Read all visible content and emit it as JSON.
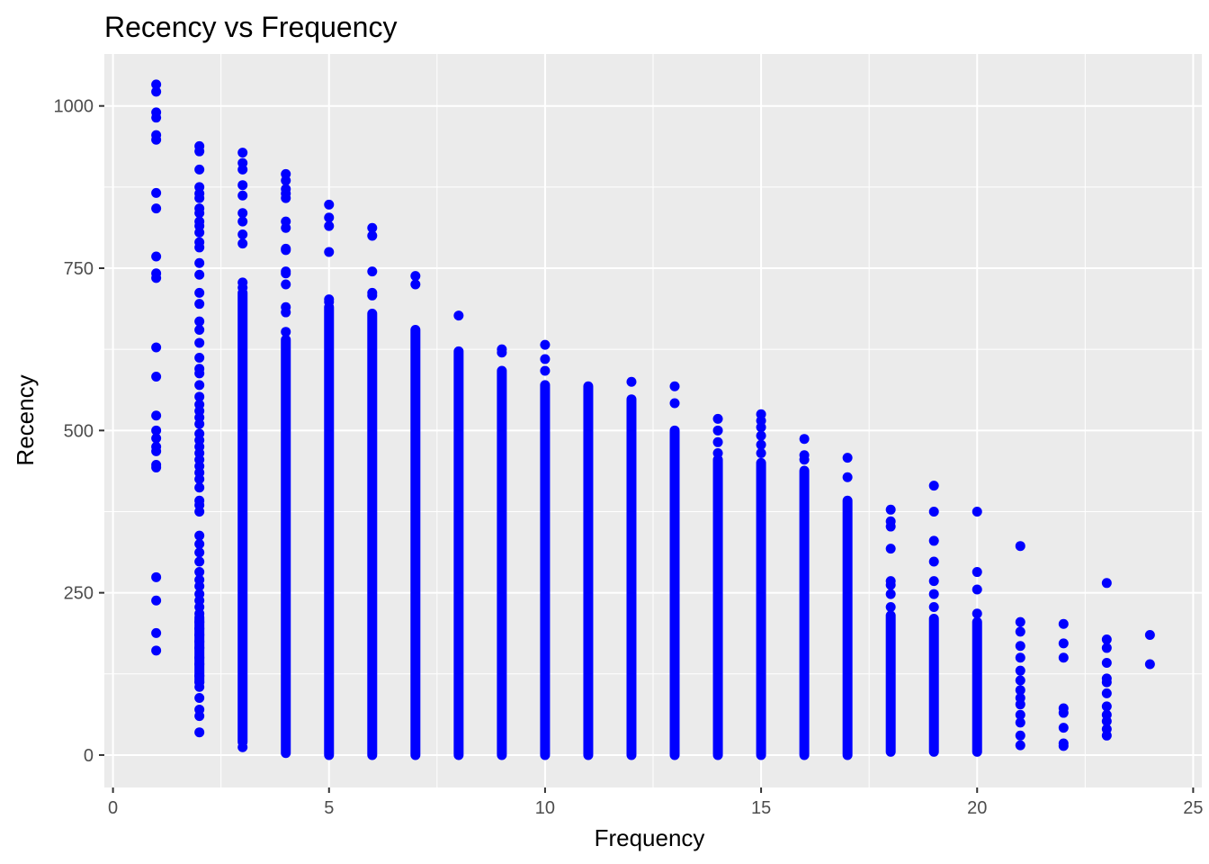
{
  "chart_data": {
    "type": "scatter",
    "title": "Recency vs Frequency",
    "xlabel": "Frequency",
    "ylabel": "Recency",
    "xlim": [
      -0.2,
      25.2
    ],
    "ylim": [
      -50,
      1080
    ],
    "x_ticks": [
      0,
      5,
      10,
      15,
      20,
      25
    ],
    "y_ticks": [
      0,
      250,
      500,
      750,
      1000
    ],
    "x_tick_labels": [
      "0",
      "5",
      "10",
      "15",
      "20",
      "25"
    ],
    "y_tick_labels": [
      "0",
      "250",
      "500",
      "750",
      "1000"
    ],
    "grid": true,
    "panel_background": "#ebebeb",
    "grid_color": "#ffffff",
    "point_color": "#0000ff",
    "series": [
      {
        "points": [
          {
            "x": 1,
            "y": [
              1033,
              1022,
              990,
              982,
              955,
              948,
              866,
              842,
              768,
              742,
              735,
              628,
              583,
              523,
              500,
              488,
              475,
              468,
              447,
              443,
              274,
              238,
              188,
              161
            ]
          },
          {
            "x": 2,
            "y": [
              938,
              930,
              902,
              875,
              865,
              858,
              842,
              835,
              822,
              815,
              805,
              790,
              782,
              758,
              740,
              712,
              695,
              668,
              655,
              635,
              612,
              595,
              588,
              570,
              552,
              540,
              530,
              520,
              510,
              495,
              485,
              475,
              465,
              455,
              445,
              435,
              425,
              412,
              392,
              385,
              375,
              338,
              325,
              312,
              298,
              282,
              270,
              260,
              248,
              238,
              228,
              218,
              205,
              195,
              185,
              175,
              165,
              150,
              140,
              122,
              112,
              105,
              88,
              70,
              60,
              35
            ],
            "range": [
              [
                112,
                212
              ]
            ]
          },
          {
            "x": 3,
            "y": [
              928,
              912,
              902,
              878,
              862,
              835,
              822,
              802,
              788,
              728,
              720,
              12
            ],
            "range": [
              [
                20,
                712
              ]
            ]
          },
          {
            "x": 4,
            "y": [
              895,
              885,
              872,
              865,
              858,
              822,
              812,
              780,
              778,
              745,
              742,
              725,
              690,
              682,
              652
            ],
            "range": [
              [
                3,
                640
              ]
            ]
          },
          {
            "x": 5,
            "y": [
              848,
              828,
              815,
              775,
              702,
              698
            ],
            "range": [
              [
                0,
                690
              ]
            ]
          },
          {
            "x": 6,
            "y": [
              812,
              800,
              745,
              712,
              708
            ],
            "range": [
              [
                0,
                680
              ]
            ]
          },
          {
            "x": 7,
            "y": [
              738,
              725
            ],
            "range": [
              [
                0,
                655
              ]
            ]
          },
          {
            "x": 8,
            "y": [
              677
            ],
            "range": [
              [
                0,
                622
              ]
            ]
          },
          {
            "x": 9,
            "y": [
              625,
              620
            ],
            "range": [
              [
                0,
                592
              ]
            ]
          },
          {
            "x": 10,
            "y": [
              632,
              610,
              592
            ],
            "range": [
              [
                0,
                570
              ]
            ]
          },
          {
            "x": 11,
            "y": [],
            "range": [
              [
                0,
                568
              ]
            ]
          },
          {
            "x": 12,
            "y": [
              575
            ],
            "range": [
              [
                0,
                548
              ]
            ]
          },
          {
            "x": 13,
            "y": [
              568,
              542
            ],
            "range": [
              [
                0,
                500
              ]
            ]
          },
          {
            "x": 14,
            "y": [
              518,
              500,
              482,
              465
            ],
            "range": [
              [
                0,
                455
              ]
            ]
          },
          {
            "x": 15,
            "y": [
              525,
              515,
              505,
              492,
              478,
              465
            ],
            "range": [
              [
                0,
                450
              ]
            ]
          },
          {
            "x": 16,
            "y": [
              487,
              462,
              455
            ],
            "range": [
              [
                0,
                438
              ]
            ]
          },
          {
            "x": 17,
            "y": [
              458,
              428
            ],
            "range": [
              [
                0,
                392
              ]
            ]
          },
          {
            "x": 18,
            "y": [
              378,
              360,
              352,
              318,
              268,
              262,
              248,
              228
            ],
            "range": [
              [
                5,
                215
              ]
            ]
          },
          {
            "x": 19,
            "y": [
              415,
              375,
              330,
              298,
              268,
              248,
              228
            ],
            "range": [
              [
                5,
                210
              ]
            ]
          },
          {
            "x": 20,
            "y": [
              375,
              282,
              255,
              218
            ],
            "range": [
              [
                5,
                205
              ]
            ]
          },
          {
            "x": 21,
            "y": [
              322,
              205,
              190,
              168,
              150,
              130,
              115,
              100,
              88,
              78,
              62,
              50,
              30,
              15
            ]
          },
          {
            "x": 22,
            "y": [
              202,
              172,
              150,
              72,
              65,
              42,
              18,
              14
            ]
          },
          {
            "x": 23,
            "y": [
              265,
              178,
              165,
              142,
              118,
              112,
              95,
              75,
              62,
              52,
              40,
              30
            ]
          },
          {
            "x": 24,
            "y": [
              185,
              140
            ]
          }
        ]
      }
    ]
  }
}
